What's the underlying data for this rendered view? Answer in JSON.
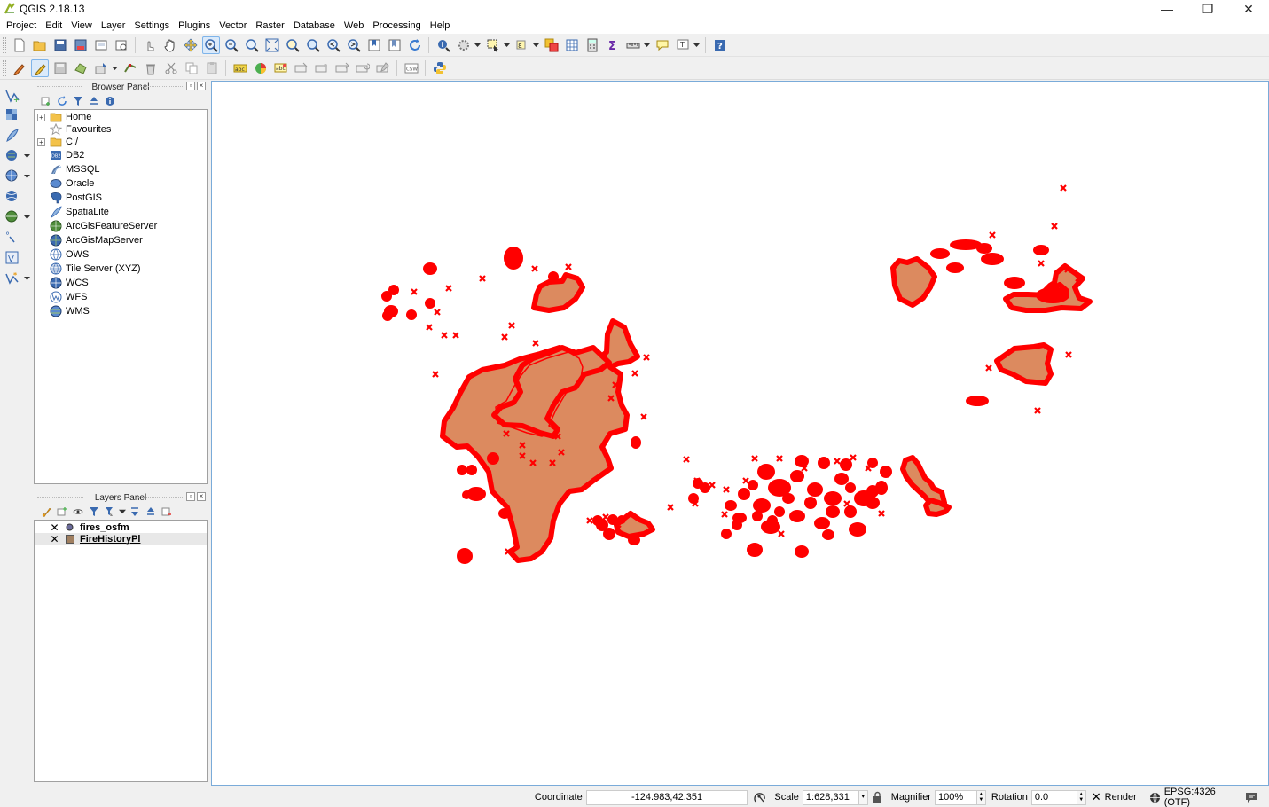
{
  "window": {
    "title": "QGIS 2.18.13",
    "minimize_glyph": "—",
    "restore_glyph": "❐",
    "close_glyph": "✕"
  },
  "menu": [
    "Project",
    "Edit",
    "View",
    "Layer",
    "Settings",
    "Plugins",
    "Vector",
    "Raster",
    "Database",
    "Web",
    "Processing",
    "Help"
  ],
  "browser_panel": {
    "title": "Browser Panel",
    "items": [
      {
        "label": "Home",
        "icon": "folder-icon",
        "expander": "+"
      },
      {
        "label": "Favourites",
        "icon": "star-icon",
        "expander": ""
      },
      {
        "label": "C:/",
        "icon": "folder-icon",
        "expander": "+"
      },
      {
        "label": "DB2",
        "icon": "db2-icon",
        "expander": ""
      },
      {
        "label": "MSSQL",
        "icon": "mssql-icon",
        "expander": ""
      },
      {
        "label": "Oracle",
        "icon": "oracle-icon",
        "expander": ""
      },
      {
        "label": "PostGIS",
        "icon": "postgis-icon",
        "expander": ""
      },
      {
        "label": "SpatiaLite",
        "icon": "spatialite-icon",
        "expander": ""
      },
      {
        "label": "ArcGisFeatureServer",
        "icon": "arcgis-feature-icon",
        "expander": ""
      },
      {
        "label": "ArcGisMapServer",
        "icon": "arcgis-map-icon",
        "expander": ""
      },
      {
        "label": "OWS",
        "icon": "ows-icon",
        "expander": ""
      },
      {
        "label": "Tile Server (XYZ)",
        "icon": "globe-icon",
        "expander": ""
      },
      {
        "label": "WCS",
        "icon": "wcs-icon",
        "expander": ""
      },
      {
        "label": "WFS",
        "icon": "wfs-icon",
        "expander": ""
      },
      {
        "label": "WMS",
        "icon": "wms-icon",
        "expander": ""
      }
    ]
  },
  "layers_panel": {
    "title": "Layers Panel",
    "layers": [
      {
        "name": "fires_osfm",
        "visible": true,
        "checkmark": "✕",
        "symbol": "point",
        "selected": false
      },
      {
        "name": "FireHistoryPl",
        "visible": true,
        "checkmark": "✕",
        "symbol": "polygon",
        "selected": true
      }
    ]
  },
  "map": {
    "polygon_fill": "#dc8a5f",
    "polygon_stroke": "#ff0000",
    "point_color": "#ff0000"
  },
  "status": {
    "coordinate_label": "Coordinate",
    "coordinate_value": "-124.983,42.351",
    "scale_label": "Scale",
    "scale_value": "1:628,331",
    "magnifier_label": "Magnifier",
    "magnifier_value": "100%",
    "rotation_label": "Rotation",
    "rotation_value": "0.0",
    "render_label": "Render",
    "crs_label": "EPSG:4326 (OTF)"
  }
}
